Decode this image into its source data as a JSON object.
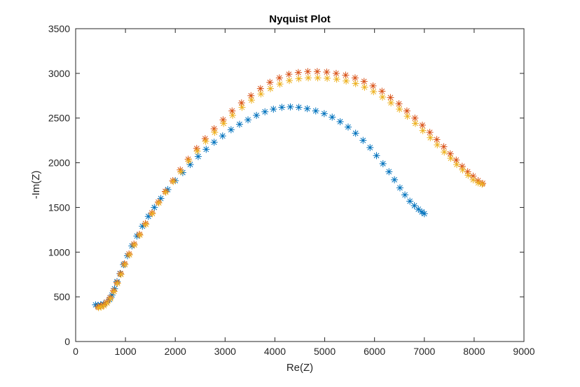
{
  "chart_data": {
    "type": "scatter",
    "title": "Nyquist Plot",
    "xlabel": "Re(Z)",
    "ylabel": "-Im(Z)",
    "xlim": [
      0,
      9000
    ],
    "ylim": [
      0,
      3500
    ],
    "xticks": [
      "0",
      "1000",
      "2000",
      "3000",
      "4000",
      "5000",
      "6000",
      "7000",
      "8000",
      "9000"
    ],
    "yticks": [
      "0",
      "500",
      "1000",
      "1500",
      "2000",
      "2500",
      "3000",
      "3500"
    ],
    "grid": false,
    "legend": "none",
    "marker": "asterisk",
    "series": [
      {
        "color": "#0072BD",
        "points": [
          [
            400,
            410
          ],
          [
            450,
            405
          ],
          [
            500,
            410
          ],
          [
            560,
            420
          ],
          [
            620,
            440
          ],
          [
            680,
            470
          ],
          [
            730,
            520
          ],
          [
            780,
            590
          ],
          [
            830,
            670
          ],
          [
            890,
            760
          ],
          [
            960,
            860
          ],
          [
            1040,
            960
          ],
          [
            1130,
            1070
          ],
          [
            1230,
            1180
          ],
          [
            1340,
            1290
          ],
          [
            1460,
            1400
          ],
          [
            1580,
            1500
          ],
          [
            1710,
            1600
          ],
          [
            1850,
            1700
          ],
          [
            2000,
            1800
          ],
          [
            2150,
            1890
          ],
          [
            2300,
            1980
          ],
          [
            2460,
            2070
          ],
          [
            2620,
            2150
          ],
          [
            2780,
            2230
          ],
          [
            2950,
            2300
          ],
          [
            3120,
            2370
          ],
          [
            3290,
            2430
          ],
          [
            3460,
            2480
          ],
          [
            3630,
            2530
          ],
          [
            3800,
            2570
          ],
          [
            3970,
            2600
          ],
          [
            4140,
            2620
          ],
          [
            4310,
            2625
          ],
          [
            4480,
            2620
          ],
          [
            4650,
            2605
          ],
          [
            4820,
            2580
          ],
          [
            4990,
            2550
          ],
          [
            5150,
            2510
          ],
          [
            5310,
            2460
          ],
          [
            5470,
            2400
          ],
          [
            5620,
            2330
          ],
          [
            5770,
            2250
          ],
          [
            5910,
            2170
          ],
          [
            6040,
            2080
          ],
          [
            6170,
            1990
          ],
          [
            6290,
            1900
          ],
          [
            6400,
            1810
          ],
          [
            6510,
            1720
          ],
          [
            6610,
            1640
          ],
          [
            6710,
            1570
          ],
          [
            6800,
            1520
          ],
          [
            6880,
            1480
          ],
          [
            6950,
            1450
          ],
          [
            7000,
            1430
          ]
        ]
      },
      {
        "color": "#D95319",
        "points": [
          [
            450,
            390
          ],
          [
            500,
            395
          ],
          [
            560,
            410
          ],
          [
            620,
            440
          ],
          [
            690,
            490
          ],
          [
            760,
            570
          ],
          [
            830,
            660
          ],
          [
            900,
            760
          ],
          [
            980,
            870
          ],
          [
            1070,
            980
          ],
          [
            1170,
            1090
          ],
          [
            1280,
            1200
          ],
          [
            1400,
            1320
          ],
          [
            1530,
            1440
          ],
          [
            1660,
            1560
          ],
          [
            1800,
            1680
          ],
          [
            1950,
            1800
          ],
          [
            2100,
            1920
          ],
          [
            2260,
            2040
          ],
          [
            2430,
            2160
          ],
          [
            2600,
            2270
          ],
          [
            2780,
            2380
          ],
          [
            2960,
            2480
          ],
          [
            3140,
            2580
          ],
          [
            3330,
            2670
          ],
          [
            3520,
            2750
          ],
          [
            3710,
            2830
          ],
          [
            3900,
            2900
          ],
          [
            4090,
            2950
          ],
          [
            4280,
            2990
          ],
          [
            4470,
            3010
          ],
          [
            4660,
            3020
          ],
          [
            4850,
            3020
          ],
          [
            5040,
            3015
          ],
          [
            5230,
            3000
          ],
          [
            5420,
            2980
          ],
          [
            5610,
            2950
          ],
          [
            5790,
            2910
          ],
          [
            5970,
            2860
          ],
          [
            6150,
            2800
          ],
          [
            6320,
            2730
          ],
          [
            6490,
            2660
          ],
          [
            6650,
            2580
          ],
          [
            6810,
            2500
          ],
          [
            6960,
            2420
          ],
          [
            7110,
            2340
          ],
          [
            7250,
            2260
          ],
          [
            7390,
            2180
          ],
          [
            7520,
            2100
          ],
          [
            7640,
            2030
          ],
          [
            7760,
            1960
          ],
          [
            7870,
            1900
          ],
          [
            7980,
            1850
          ],
          [
            8080,
            1800
          ],
          [
            8170,
            1770
          ]
        ]
      },
      {
        "color": "#EDB120",
        "points": [
          [
            460,
            380
          ],
          [
            510,
            385
          ],
          [
            570,
            400
          ],
          [
            630,
            430
          ],
          [
            700,
            480
          ],
          [
            770,
            560
          ],
          [
            840,
            650
          ],
          [
            910,
            750
          ],
          [
            990,
            860
          ],
          [
            1080,
            970
          ],
          [
            1180,
            1080
          ],
          [
            1290,
            1190
          ],
          [
            1410,
            1310
          ],
          [
            1540,
            1430
          ],
          [
            1670,
            1550
          ],
          [
            1810,
            1670
          ],
          [
            1960,
            1790
          ],
          [
            2110,
            1900
          ],
          [
            2270,
            2020
          ],
          [
            2440,
            2130
          ],
          [
            2610,
            2240
          ],
          [
            2790,
            2340
          ],
          [
            2970,
            2440
          ],
          [
            3150,
            2530
          ],
          [
            3340,
            2620
          ],
          [
            3530,
            2700
          ],
          [
            3720,
            2770
          ],
          [
            3910,
            2830
          ],
          [
            4100,
            2880
          ],
          [
            4290,
            2920
          ],
          [
            4480,
            2940
          ],
          [
            4670,
            2950
          ],
          [
            4860,
            2950
          ],
          [
            5050,
            2945
          ],
          [
            5240,
            2935
          ],
          [
            5430,
            2915
          ],
          [
            5620,
            2885
          ],
          [
            5800,
            2845
          ],
          [
            5980,
            2795
          ],
          [
            6160,
            2735
          ],
          [
            6330,
            2670
          ],
          [
            6500,
            2600
          ],
          [
            6660,
            2520
          ],
          [
            6820,
            2440
          ],
          [
            6970,
            2360
          ],
          [
            7120,
            2280
          ],
          [
            7260,
            2200
          ],
          [
            7400,
            2120
          ],
          [
            7530,
            2050
          ],
          [
            7650,
            1980
          ],
          [
            7770,
            1920
          ],
          [
            7880,
            1860
          ],
          [
            7980,
            1810
          ],
          [
            8080,
            1775
          ],
          [
            8160,
            1760
          ]
        ]
      }
    ]
  }
}
